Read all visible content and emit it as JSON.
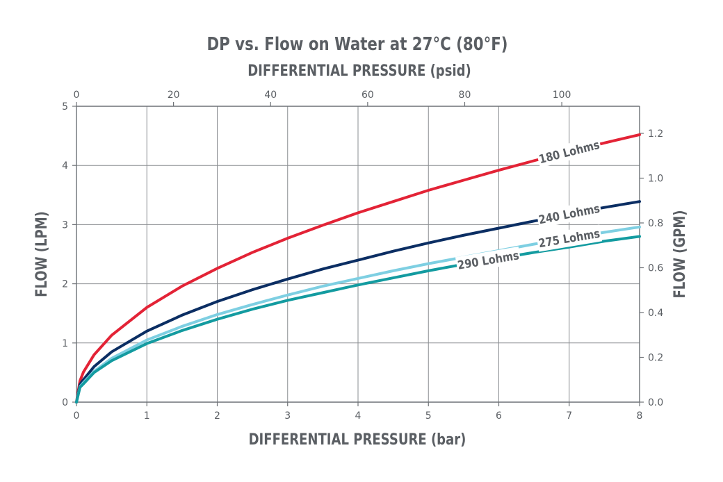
{
  "chart_data": {
    "type": "line",
    "title": "DP vs. Flow on Water at 27°C (80°F)",
    "top_axis_label": "DIFFERENTIAL PRESSURE (psid)",
    "xlabel": "DIFFERENTIAL PRESSURE (bar)",
    "ylabel": "FLOW (LPM)",
    "y2label": "FLOW (GPM)",
    "xlim": [
      0,
      8
    ],
    "ylim": [
      0,
      5
    ],
    "top_xlim": [
      0,
      116.03
    ],
    "y2lim": [
      0,
      1.3209
    ],
    "x_ticks": [
      "0",
      "1",
      "2",
      "3",
      "4",
      "5",
      "6",
      "7",
      "8"
    ],
    "y_ticks": [
      "0",
      "1",
      "2",
      "3",
      "4",
      "5"
    ],
    "top_ticks": [
      "0",
      "20",
      "40",
      "60",
      "80",
      "100"
    ],
    "y2_ticks": [
      "0.0",
      "0.2",
      "0.4",
      "0.6",
      "0.8",
      "1.0",
      "1.2"
    ],
    "grid": true,
    "series": [
      {
        "name": "180 Lohms",
        "color": "#e32336",
        "x": [
          0,
          0.05,
          0.1,
          0.25,
          0.5,
          1,
          1.5,
          2,
          2.5,
          3,
          3.5,
          4,
          4.5,
          5,
          5.5,
          6,
          6.5,
          7,
          7.5,
          8
        ],
        "values": [
          0,
          0.36,
          0.51,
          0.8,
          1.13,
          1.6,
          1.96,
          2.26,
          2.53,
          2.77,
          2.99,
          3.2,
          3.39,
          3.58,
          3.75,
          3.92,
          4.08,
          4.23,
          4.38,
          4.52
        ]
      },
      {
        "name": "240 Lohms",
        "color": "#0b2e63",
        "x": [
          0,
          0.05,
          0.1,
          0.25,
          0.5,
          1,
          1.5,
          2,
          2.5,
          3,
          3.5,
          4,
          4.5,
          5,
          5.5,
          6,
          6.5,
          7,
          7.5,
          8
        ],
        "values": [
          0,
          0.3,
          0.38,
          0.6,
          0.85,
          1.2,
          1.47,
          1.7,
          1.9,
          2.08,
          2.25,
          2.4,
          2.55,
          2.69,
          2.82,
          2.94,
          3.06,
          3.18,
          3.29,
          3.39
        ]
      },
      {
        "name": "275 Lohms",
        "color": "#7ecfe2",
        "x": [
          0,
          0.05,
          0.1,
          0.25,
          0.5,
          1,
          1.5,
          2,
          2.5,
          3,
          3.5,
          4,
          4.5,
          5,
          5.5,
          6,
          6.5,
          7,
          7.5,
          8
        ],
        "values": [
          0,
          0.26,
          0.33,
          0.52,
          0.74,
          1.05,
          1.28,
          1.48,
          1.65,
          1.81,
          1.96,
          2.09,
          2.22,
          2.34,
          2.45,
          2.56,
          2.67,
          2.77,
          2.87,
          2.96
        ]
      },
      {
        "name": "290 Lohms",
        "color": "#139ba0",
        "x": [
          0,
          0.05,
          0.1,
          0.25,
          0.5,
          1,
          1.5,
          2,
          2.5,
          3,
          3.5,
          4,
          4.5,
          5,
          5.5,
          6,
          6.5,
          7,
          7.5,
          8
        ],
        "values": [
          0,
          0.25,
          0.31,
          0.5,
          0.7,
          0.99,
          1.21,
          1.4,
          1.57,
          1.72,
          1.85,
          1.98,
          2.1,
          2.22,
          2.33,
          2.43,
          2.53,
          2.62,
          2.72,
          2.8
        ]
      }
    ],
    "annotations": [
      {
        "text": "180 Lohms",
        "x": 7.0,
        "y": 4.23
      },
      {
        "text": "240 Lohms",
        "x": 7.0,
        "y": 3.18
      },
      {
        "text": "275 Lohms",
        "x": 7.0,
        "y": 2.77
      },
      {
        "text": "290 Lohms",
        "x": 5.85,
        "y": 2.4
      }
    ]
  }
}
